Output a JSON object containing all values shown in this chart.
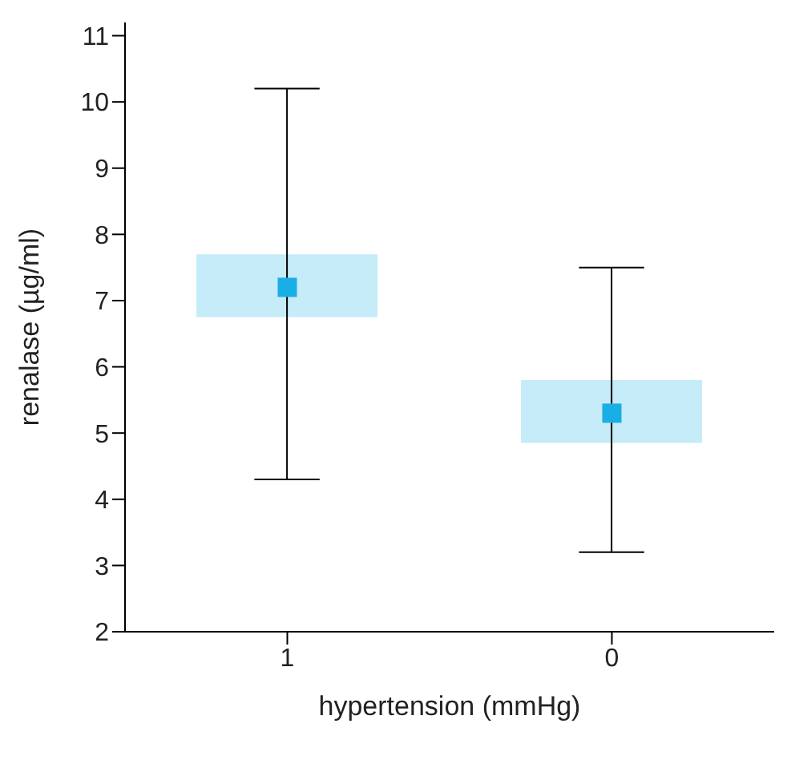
{
  "chart_data": {
    "type": "box",
    "xlabel": "hypertension (mmHg)",
    "ylabel": "renalase (µg/ml)",
    "categories": [
      "1",
      "0"
    ],
    "series": [
      {
        "color": "#1aaee6",
        "boxes": [
          {
            "low": 4.3,
            "q1": 6.75,
            "median": 7.2,
            "q3": 7.7,
            "high": 10.2
          },
          {
            "low": 3.2,
            "q1": 4.85,
            "median": 5.3,
            "q3": 5.8,
            "high": 7.5
          }
        ]
      }
    ],
    "marker": "square",
    "ylim": [
      2,
      11.2
    ],
    "yticks": [
      2,
      3,
      4,
      5,
      6,
      7,
      8,
      9,
      10,
      11
    ],
    "grid": false
  }
}
